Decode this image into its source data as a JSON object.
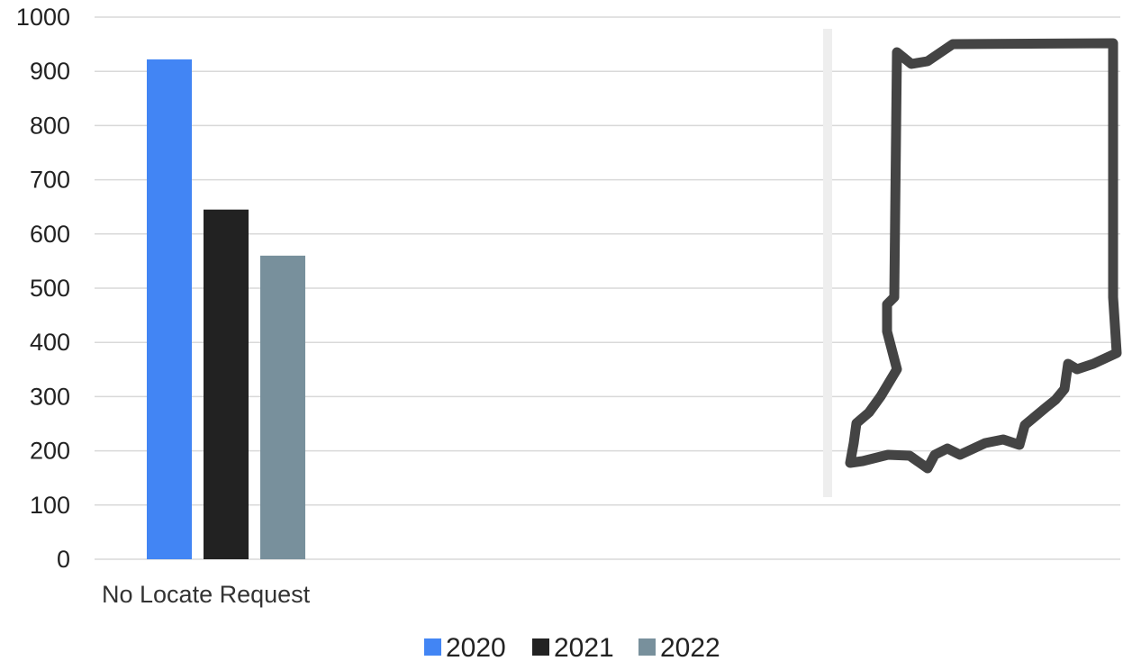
{
  "chart_data": {
    "type": "bar",
    "categories": [
      "No Locate Request"
    ],
    "series": [
      {
        "name": "2020",
        "values": [
          922
        ],
        "color": "#4285f4"
      },
      {
        "name": "2021",
        "values": [
          645
        ],
        "color": "#222222"
      },
      {
        "name": "2022",
        "values": [
          560
        ],
        "color": "#78909c"
      }
    ],
    "yticks": [
      "0",
      "100",
      "200",
      "300",
      "400",
      "500",
      "600",
      "700",
      "800",
      "900",
      "1000"
    ],
    "ylim": [
      0,
      1000
    ],
    "grid": true,
    "legend": "bottom-center",
    "colors": {
      "grid": "#d9d9d9",
      "map_outline": "#444444",
      "divider": "#eeeeee"
    }
  },
  "map_icon": "indiana-state-outline-icon"
}
